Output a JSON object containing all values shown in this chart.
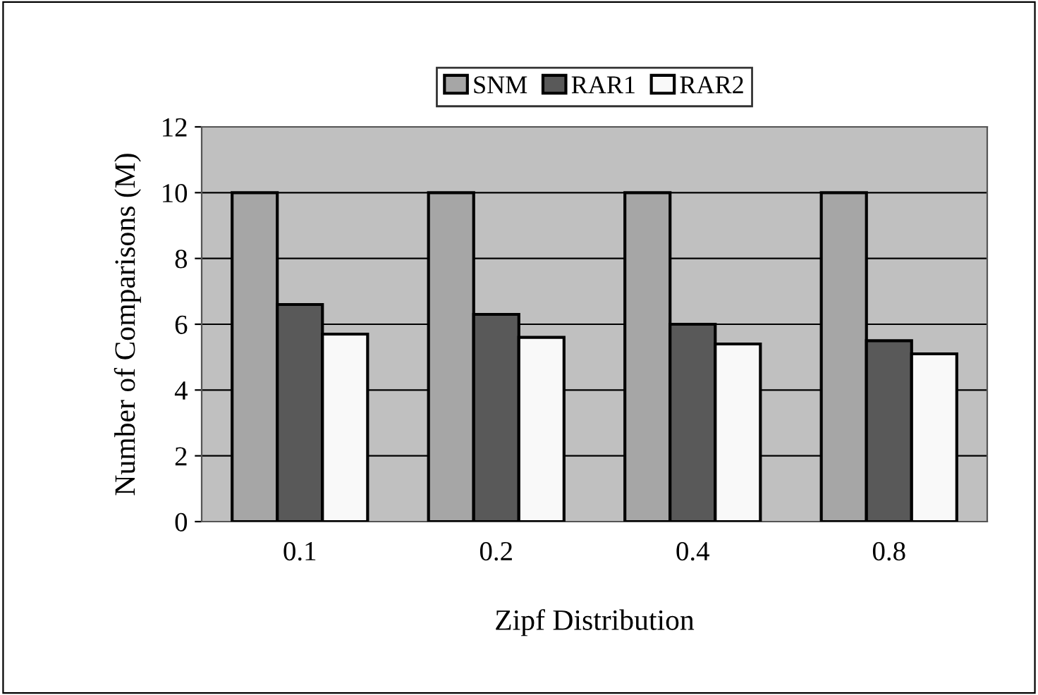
{
  "chart_data": {
    "type": "bar",
    "xlabel": "Zipf Distribution",
    "ylabel": "Number of Comparisons (M)",
    "categories": [
      "0.1",
      "0.2",
      "0.4",
      "0.8"
    ],
    "series": [
      {
        "name": "SNM",
        "color": "#a6a6a6",
        "values": [
          10,
          10,
          10,
          10
        ]
      },
      {
        "name": "RAR1",
        "color": "#595959",
        "values": [
          6.6,
          6.3,
          6.0,
          5.5
        ]
      },
      {
        "name": "RAR2",
        "color": "#f9f9f9",
        "values": [
          5.7,
          5.6,
          5.4,
          5.1
        ]
      }
    ],
    "ylim": [
      0,
      12
    ],
    "yticks": [
      0,
      2,
      4,
      6,
      8,
      10,
      12
    ],
    "grid": "y",
    "legend": "top"
  }
}
